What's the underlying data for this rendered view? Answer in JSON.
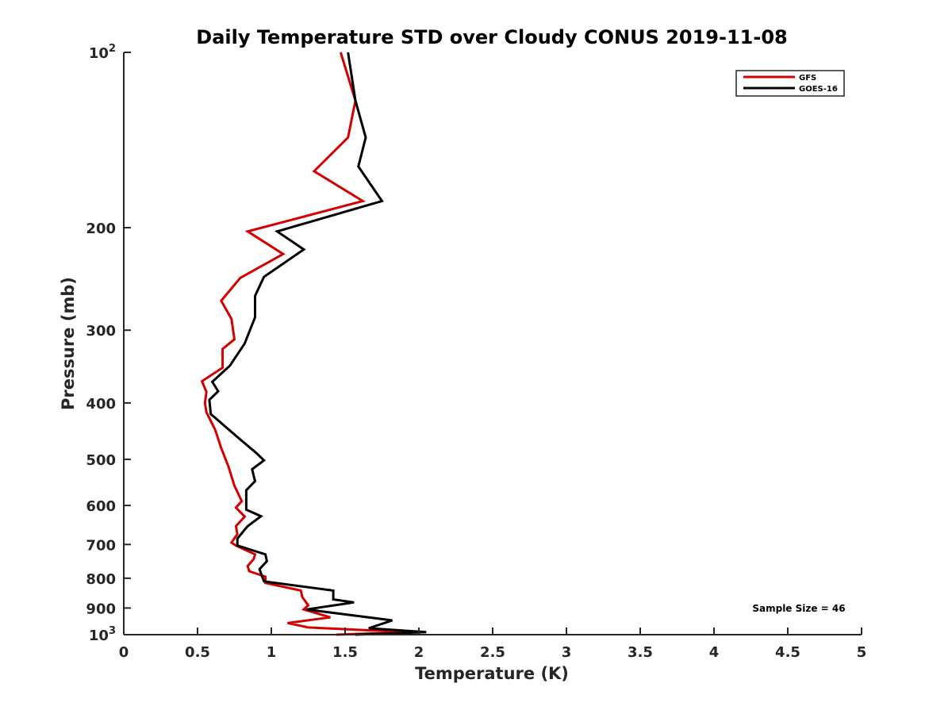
{
  "chart_data": {
    "type": "line",
    "title": "Daily Temperature STD over Cloudy CONUS 2019-11-08",
    "xlabel": "Temperature (K)",
    "ylabel": "Pressure (mb)",
    "xlim": [
      0,
      5
    ],
    "ylim": [
      100,
      1000
    ],
    "y_scale": "log",
    "y_reversed": true,
    "grid": false,
    "legend_position": "top-right",
    "x_ticks": [
      {
        "value": 0,
        "label": "0"
      },
      {
        "value": 0.5,
        "label": "0.5"
      },
      {
        "value": 1,
        "label": "1"
      },
      {
        "value": 1.5,
        "label": "1.5"
      },
      {
        "value": 2,
        "label": "2"
      },
      {
        "value": 2.5,
        "label": "2.5"
      },
      {
        "value": 3,
        "label": "3"
      },
      {
        "value": 3.5,
        "label": "3.5"
      },
      {
        "value": 4,
        "label": "4"
      },
      {
        "value": 4.5,
        "label": "4.5"
      },
      {
        "value": 5,
        "label": "5"
      }
    ],
    "y_ticks": [
      {
        "value": 100,
        "label": "10",
        "sup": "2"
      },
      {
        "value": 200,
        "label": "200"
      },
      {
        "value": 300,
        "label": "300"
      },
      {
        "value": 400,
        "label": "400"
      },
      {
        "value": 500,
        "label": "500"
      },
      {
        "value": 600,
        "label": "600"
      },
      {
        "value": 700,
        "label": "700"
      },
      {
        "value": 800,
        "label": "800"
      },
      {
        "value": 900,
        "label": "900"
      },
      {
        "value": 1000,
        "label": "10",
        "sup": "3"
      }
    ],
    "annotation": "Sample Size = 46",
    "series": [
      {
        "name": "GFS",
        "color": "#d40000",
        "points": [
          {
            "x": 1.47,
            "y": 100
          },
          {
            "x": 1.57,
            "y": 121
          },
          {
            "x": 1.52,
            "y": 140
          },
          {
            "x": 1.29,
            "y": 160
          },
          {
            "x": 1.62,
            "y": 180
          },
          {
            "x": 0.84,
            "y": 203
          },
          {
            "x": 1.08,
            "y": 222
          },
          {
            "x": 0.79,
            "y": 244
          },
          {
            "x": 0.66,
            "y": 267
          },
          {
            "x": 0.73,
            "y": 287
          },
          {
            "x": 0.75,
            "y": 311
          },
          {
            "x": 0.67,
            "y": 323
          },
          {
            "x": 0.67,
            "y": 348
          },
          {
            "x": 0.53,
            "y": 367
          },
          {
            "x": 0.56,
            "y": 383
          },
          {
            "x": 0.55,
            "y": 400
          },
          {
            "x": 0.56,
            "y": 415
          },
          {
            "x": 0.62,
            "y": 445
          },
          {
            "x": 0.66,
            "y": 478
          },
          {
            "x": 0.71,
            "y": 515
          },
          {
            "x": 0.75,
            "y": 555
          },
          {
            "x": 0.8,
            "y": 590
          },
          {
            "x": 0.76,
            "y": 605
          },
          {
            "x": 0.82,
            "y": 627
          },
          {
            "x": 0.76,
            "y": 651
          },
          {
            "x": 0.77,
            "y": 672
          },
          {
            "x": 0.73,
            "y": 695
          },
          {
            "x": 0.76,
            "y": 703
          },
          {
            "x": 0.89,
            "y": 728
          },
          {
            "x": 0.88,
            "y": 742
          },
          {
            "x": 0.84,
            "y": 762
          },
          {
            "x": 0.85,
            "y": 778
          },
          {
            "x": 0.96,
            "y": 795
          },
          {
            "x": 0.96,
            "y": 815
          },
          {
            "x": 1.2,
            "y": 840
          },
          {
            "x": 1.21,
            "y": 862
          },
          {
            "x": 1.25,
            "y": 890
          },
          {
            "x": 1.22,
            "y": 905
          },
          {
            "x": 1.4,
            "y": 934
          },
          {
            "x": 1.11,
            "y": 955
          },
          {
            "x": 1.25,
            "y": 972
          },
          {
            "x": 1.92,
            "y": 990
          },
          {
            "x": 1.44,
            "y": 1000
          }
        ]
      },
      {
        "name": "GOES-16",
        "color": "#000000",
        "points": [
          {
            "x": 1.52,
            "y": 100
          },
          {
            "x": 1.57,
            "y": 121
          },
          {
            "x": 1.64,
            "y": 140
          },
          {
            "x": 1.59,
            "y": 157
          },
          {
            "x": 1.75,
            "y": 180
          },
          {
            "x": 1.04,
            "y": 203
          },
          {
            "x": 1.22,
            "y": 218
          },
          {
            "x": 0.95,
            "y": 243
          },
          {
            "x": 0.89,
            "y": 262
          },
          {
            "x": 0.89,
            "y": 285
          },
          {
            "x": 0.82,
            "y": 316
          },
          {
            "x": 0.72,
            "y": 345
          },
          {
            "x": 0.6,
            "y": 368
          },
          {
            "x": 0.64,
            "y": 382
          },
          {
            "x": 0.58,
            "y": 395
          },
          {
            "x": 0.59,
            "y": 418
          },
          {
            "x": 0.78,
            "y": 460
          },
          {
            "x": 0.9,
            "y": 488
          },
          {
            "x": 0.95,
            "y": 502
          },
          {
            "x": 0.87,
            "y": 520
          },
          {
            "x": 0.89,
            "y": 545
          },
          {
            "x": 0.83,
            "y": 565
          },
          {
            "x": 0.83,
            "y": 610
          },
          {
            "x": 0.93,
            "y": 626
          },
          {
            "x": 0.84,
            "y": 651
          },
          {
            "x": 0.77,
            "y": 684
          },
          {
            "x": 0.77,
            "y": 703
          },
          {
            "x": 0.96,
            "y": 728
          },
          {
            "x": 0.97,
            "y": 748
          },
          {
            "x": 0.92,
            "y": 772
          },
          {
            "x": 0.95,
            "y": 810
          },
          {
            "x": 1.42,
            "y": 840
          },
          {
            "x": 1.42,
            "y": 870
          },
          {
            "x": 1.56,
            "y": 880
          },
          {
            "x": 1.24,
            "y": 905
          },
          {
            "x": 1.82,
            "y": 945
          },
          {
            "x": 1.66,
            "y": 975
          },
          {
            "x": 2.05,
            "y": 990
          },
          {
            "x": 1.57,
            "y": 1000
          }
        ]
      }
    ]
  }
}
